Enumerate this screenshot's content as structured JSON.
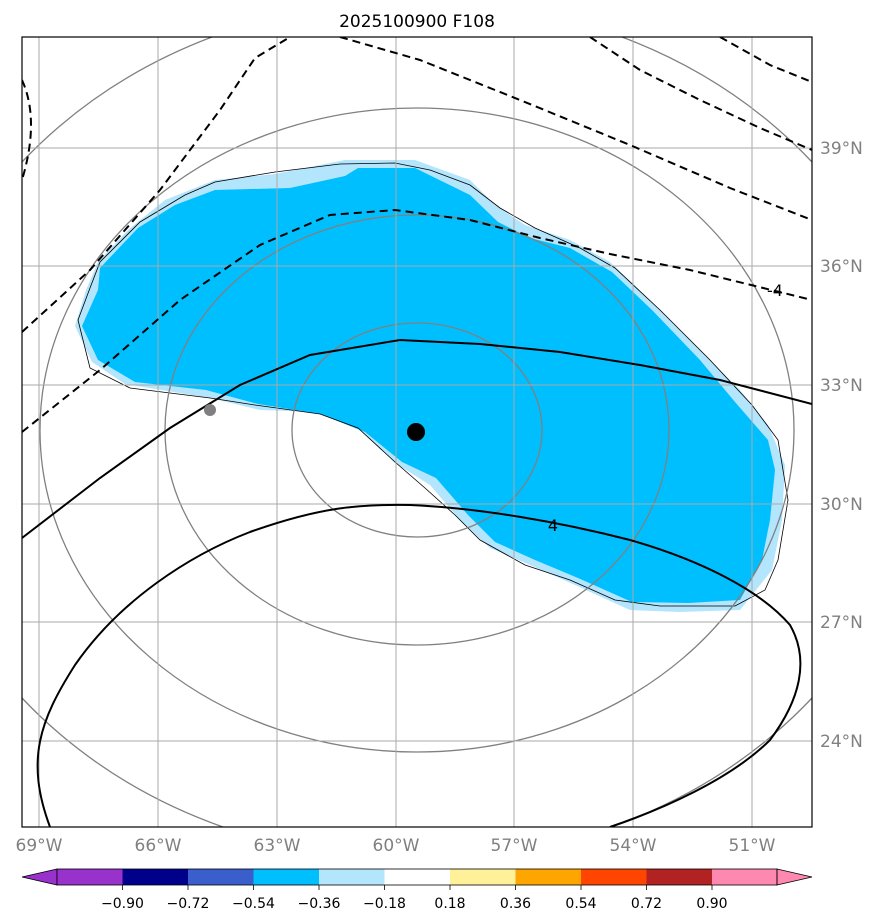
{
  "title": "2025100900 F108",
  "map": {
    "lon_labels": [
      "69°W",
      "66°W",
      "63°W",
      "60°W",
      "57°W",
      "54°W",
      "51°W"
    ],
    "lat_labels": [
      "39°N",
      "36°N",
      "33°N",
      "30°N",
      "27°N",
      "24°N"
    ],
    "grid_color": "#aaaaaa",
    "range_ring_color": "#808080",
    "storm_center": {
      "lon": -59.5,
      "lat": 31.8,
      "color": "#000000"
    },
    "secondary_marker": {
      "lon": -64.7,
      "lat": 32.4,
      "color": "#808080"
    },
    "shaded_field_colors": {
      "fill": "#00bfff",
      "edge": "#b3e5fc"
    },
    "contour_labels": [
      "-4",
      "4"
    ]
  },
  "colorbar": {
    "colors": [
      "#9932cc",
      "#00008b",
      "#3a5fcd",
      "#00bfff",
      "#b3e5fc",
      "#ffffff",
      "#fff09a",
      "#ffa500",
      "#ff4500",
      "#b22222",
      "#ff88b0"
    ],
    "tick_labels": [
      "−0.90",
      "−0.72",
      "−0.54",
      "−0.36",
      "−0.18",
      "0.18",
      "0.36",
      "0.54",
      "0.72",
      "0.90"
    ]
  }
}
